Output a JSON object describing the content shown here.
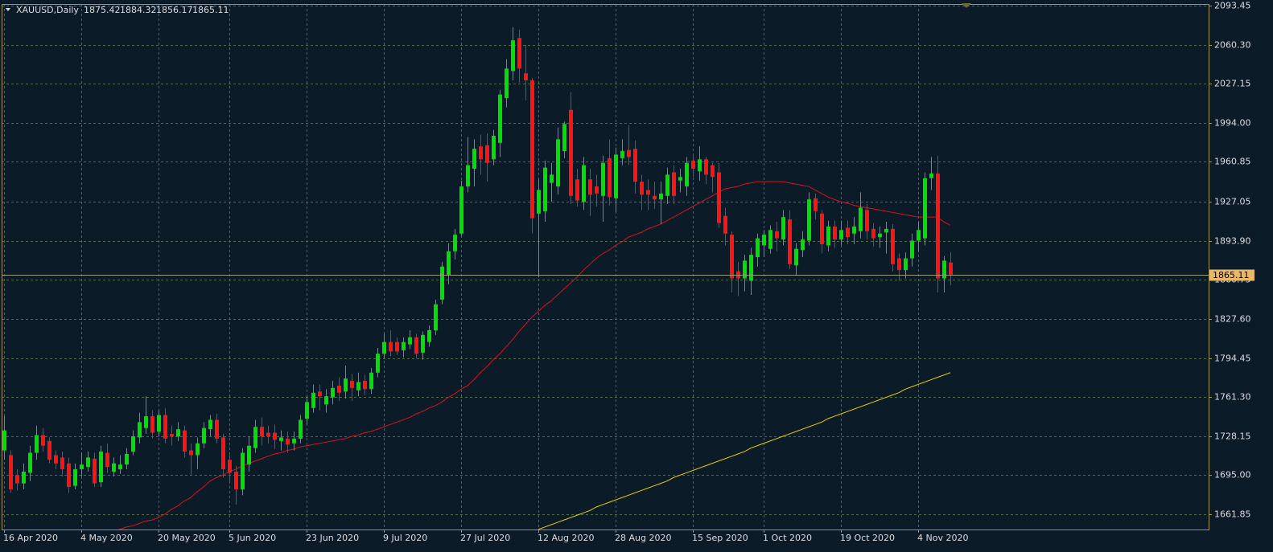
{
  "chart_data": {
    "type": "candlestick",
    "title": "XAUUSD,Daily",
    "categories": [
      "16 Apr 2020",
      null,
      null,
      null,
      null,
      null,
      null,
      null,
      null,
      null,
      null,
      null,
      "4 May 2020",
      null,
      null,
      null,
      null,
      null,
      null,
      null,
      null,
      null,
      null,
      null,
      "20 May 2020",
      null,
      null,
      null,
      null,
      null,
      null,
      null,
      null,
      null,
      null,
      "5 Jun 2020",
      null,
      null,
      null,
      null,
      null,
      null,
      null,
      null,
      null,
      null,
      null,
      "23 Jun 2020",
      null,
      null,
      null,
      null,
      null,
      null,
      null,
      null,
      null,
      null,
      null,
      "9 Jul 2020",
      null,
      null,
      null,
      null,
      null,
      null,
      null,
      null,
      null,
      null,
      null,
      "27 Jul 2020",
      null,
      null,
      null,
      null,
      null,
      null,
      null,
      null,
      null,
      null,
      null,
      "12 Aug 2020",
      null,
      null,
      null,
      null,
      null,
      null,
      null,
      null,
      null,
      null,
      null,
      "28 Aug 2020",
      null,
      null,
      null,
      null,
      null,
      null,
      null,
      null,
      null,
      null,
      null,
      "15 Sep 2020",
      null,
      null,
      null,
      null,
      null,
      null,
      null,
      null,
      null,
      null,
      "1 Oct 2020",
      null,
      null,
      null,
      null,
      null,
      null,
      null,
      null,
      null,
      null,
      null,
      "19 Oct 2020",
      null,
      null,
      null,
      null,
      null,
      null,
      null,
      null,
      null,
      null,
      null,
      "4 Nov 2020",
      null,
      null,
      null,
      null,
      null
    ],
    "open": [
      1716,
      1712,
      1695,
      1688,
      1697,
      1714,
      1729,
      1724,
      1712,
      1710,
      1705,
      1686,
      1700,
      1702,
      1709,
      1689,
      1714,
      1698,
      1700,
      1704,
      1715,
      1727,
      1735,
      1745,
      1732,
      1746,
      1730,
      1728,
      1733,
      1716,
      1712,
      1722,
      1734,
      1742,
      1727,
      1708,
      1698,
      1683,
      1704,
      1718,
      1736,
      1731,
      1731,
      1724,
      1726,
      1722,
      1726,
      1743,
      1752,
      1766,
      1755,
      1761,
      1771,
      1766,
      1775,
      1767,
      1775,
      1768,
      1782,
      1798,
      1808,
      1808,
      1801,
      1806,
      1812,
      1799,
      1808,
      1818,
      1844,
      1865,
      1885,
      1900,
      1940,
      1955,
      1974,
      1975,
      1963,
      1977,
      2015,
      2038,
      2066,
      2036,
      2030,
      1917,
      1919,
      1943,
      1940,
      1970,
      2005,
      1946,
      1927,
      1946,
      1940,
      1932,
      1964,
      1930,
      1964,
      1971,
      1972,
      1944,
      1937,
      1932,
      1929,
      1932,
      1952,
      1945,
      1940,
      1962,
      1953,
      1963,
      1958,
      1952,
      1915,
      1899,
      1868,
      1862,
      1860,
      1880,
      1890,
      1887,
      1902,
      1895,
      1912,
      1873,
      1886,
      1894,
      1930,
      1917,
      1890,
      1906,
      1895,
      1905,
      1900,
      1902,
      1920,
      1904,
      1897,
      1901,
      1904,
      1879,
      1869,
      1879,
      1894,
      1896,
      1947,
      1951,
      1862,
      1875.42
    ],
    "high": [
      1745,
      1716,
      1700,
      1705,
      1720,
      1737,
      1735,
      1727,
      1716,
      1715,
      1710,
      1705,
      1714,
      1715,
      1714,
      1720,
      1722,
      1710,
      1712,
      1718,
      1733,
      1748,
      1762,
      1750,
      1750,
      1752,
      1737,
      1740,
      1737,
      1722,
      1727,
      1740,
      1746,
      1747,
      1730,
      1712,
      1703,
      1718,
      1728,
      1742,
      1744,
      1737,
      1738,
      1733,
      1732,
      1732,
      1746,
      1762,
      1772,
      1772,
      1768,
      1775,
      1778,
      1788,
      1781,
      1782,
      1780,
      1786,
      1803,
      1815,
      1818,
      1812,
      1812,
      1818,
      1815,
      1817,
      1822,
      1844,
      1876,
      1892,
      1904,
      1945,
      1982,
      1980,
      1984,
      1985,
      1988,
      2022,
      2048,
      2075,
      2073,
      2060,
      2032,
      1946,
      1962,
      1960,
      1990,
      1995,
      2020,
      1955,
      1965,
      1955,
      1950,
      1966,
      1980,
      1973,
      1980,
      1992,
      1979,
      1950,
      1946,
      1944,
      1944,
      1956,
      1958,
      1955,
      1965,
      1968,
      1974,
      1965,
      1960,
      1960,
      1922,
      1902,
      1876,
      1882,
      1888,
      1900,
      1903,
      1907,
      1910,
      1920,
      1920,
      1892,
      1902,
      1935,
      1934,
      1920,
      1911,
      1911,
      1911,
      1911,
      1914,
      1935,
      1925,
      1909,
      1906,
      1910,
      1908,
      1883,
      1884,
      1900,
      1910,
      1952,
      1965,
      1966,
      1881,
      1884.32
    ],
    "low": [
      1708,
      1680,
      1682,
      1683,
      1690,
      1708,
      1715,
      1705,
      1700,
      1694,
      1680,
      1683,
      1694,
      1698,
      1685,
      1685,
      1697,
      1694,
      1696,
      1700,
      1712,
      1722,
      1730,
      1726,
      1728,
      1722,
      1720,
      1724,
      1710,
      1695,
      1700,
      1718,
      1728,
      1722,
      1693,
      1688,
      1670,
      1678,
      1698,
      1714,
      1720,
      1722,
      1717,
      1716,
      1714,
      1716,
      1722,
      1738,
      1748,
      1750,
      1748,
      1755,
      1758,
      1760,
      1758,
      1762,
      1763,
      1764,
      1778,
      1794,
      1796,
      1797,
      1795,
      1802,
      1794,
      1793,
      1804,
      1814,
      1840,
      1857,
      1878,
      1898,
      1935,
      1940,
      1950,
      1944,
      1958,
      1965,
      2007,
      2030,
      2028,
      2013,
      1900,
      1863,
      1910,
      1927,
      1933,
      1964,
      1925,
      1923,
      1920,
      1915,
      1923,
      1910,
      1924,
      1918,
      1958,
      1958,
      1934,
      1920,
      1920,
      1921,
      1908,
      1925,
      1925,
      1935,
      1932,
      1948,
      1945,
      1942,
      1935,
      1905,
      1890,
      1850,
      1847,
      1851,
      1848,
      1872,
      1880,
      1883,
      1885,
      1890,
      1870,
      1865,
      1880,
      1890,
      1912,
      1883,
      1885,
      1888,
      1890,
      1891,
      1891,
      1896,
      1895,
      1889,
      1888,
      1883,
      1868,
      1860,
      1862,
      1872,
      1885,
      1890,
      1937,
      1850,
      1850,
      1856.17
    ],
    "close": [
      1733,
      1683,
      1688,
      1698,
      1714,
      1729,
      1720,
      1708,
      1705,
      1700,
      1685,
      1700,
      1704,
      1710,
      1688,
      1715,
      1702,
      1705,
      1704,
      1713,
      1728,
      1740,
      1745,
      1731,
      1746,
      1726,
      1728,
      1734,
      1715,
      1712,
      1722,
      1735,
      1742,
      1726,
      1700,
      1697,
      1683,
      1714,
      1720,
      1736,
      1728,
      1728,
      1725,
      1727,
      1721,
      1726,
      1742,
      1757,
      1765,
      1762,
      1762,
      1769,
      1765,
      1777,
      1769,
      1774,
      1768,
      1782,
      1798,
      1808,
      1800,
      1800,
      1808,
      1812,
      1798,
      1814,
      1818,
      1840,
      1872,
      1885,
      1899,
      1940,
      1958,
      1972,
      1963,
      1960,
      1983,
      2018,
      2040,
      2064,
      2040,
      2030,
      1913,
      1937,
      1956,
      1950,
      1980,
      1993,
      1932,
      1928,
      1958,
      1933,
      1934,
      1960,
      1931,
      1967,
      1970,
      1965,
      1944,
      1933,
      1933,
      1929,
      1934,
      1950,
      1932,
      1948,
      1960,
      1955,
      1963,
      1950,
      1948,
      1909,
      1900,
      1862,
      1862,
      1877,
      1882,
      1896,
      1899,
      1903,
      1896,
      1914,
      1874,
      1887,
      1895,
      1929,
      1919,
      1891,
      1906,
      1895,
      1903,
      1897,
      1906,
      1922,
      1902,
      1896,
      1900,
      1904,
      1874,
      1869,
      1879,
      1894,
      1903,
      1947,
      1951,
      1862,
      1877,
      1865.11
    ],
    "up_color": "#00e000",
    "down_color": "#ff1414",
    "lines": [
      {
        "color": "#d8141c",
        "values": [
          null,
          null,
          null,
          null,
          null,
          null,
          null,
          null,
          null,
          null,
          null,
          null,
          null,
          null,
          null,
          null,
          null,
          1647,
          1649,
          1651,
          1652,
          1654,
          1656,
          1657,
          1659,
          1662,
          1666,
          1669,
          1673,
          1676,
          1681,
          1685,
          1690,
          1693,
          1695,
          1698,
          1700,
          1703,
          1705,
          1707,
          1709,
          1711,
          1713,
          1714,
          1716,
          1717,
          1719,
          1720,
          1721,
          1722,
          1723,
          1724,
          1725,
          1726,
          1728,
          1729,
          1731,
          1732,
          1734,
          1736,
          1738,
          1740,
          1742,
          1744,
          1747,
          1749,
          1752,
          1754,
          1757,
          1761,
          1764,
          1768,
          1771,
          1776,
          1782,
          1787,
          1793,
          1798,
          1804,
          1810,
          1817,
          1823,
          1829,
          1834,
          1839,
          1843,
          1848,
          1853,
          1858,
          1863,
          1869,
          1874,
          1879,
          1883,
          1886,
          1890,
          1893,
          1897,
          1899,
          1901,
          1904,
          1906,
          1908,
          1911,
          1914,
          1917,
          1920,
          1923,
          1926,
          1929,
          1932,
          1935,
          1938,
          1939,
          1940,
          1942,
          1943,
          1944,
          1944,
          1944,
          1944,
          1944,
          1943,
          1942,
          1941,
          1940,
          1937,
          1934,
          1931,
          1929,
          1927,
          1926,
          1924,
          1923,
          1922,
          1921,
          1920,
          1919,
          1918,
          1917,
          1916,
          1915,
          1914,
          1914,
          1914,
          1914,
          1910,
          1907
        ]
      },
      {
        "color": "#e6cc00",
        "values": [
          null,
          null,
          null,
          null,
          null,
          null,
          null,
          null,
          null,
          null,
          null,
          null,
          null,
          null,
          null,
          null,
          null,
          null,
          null,
          null,
          null,
          null,
          null,
          null,
          null,
          null,
          null,
          null,
          null,
          null,
          null,
          null,
          null,
          null,
          null,
          null,
          null,
          null,
          null,
          null,
          null,
          null,
          null,
          null,
          null,
          null,
          null,
          null,
          null,
          null,
          null,
          null,
          null,
          null,
          null,
          null,
          null,
          null,
          null,
          null,
          null,
          null,
          null,
          null,
          null,
          null,
          null,
          null,
          null,
          null,
          null,
          null,
          null,
          null,
          null,
          null,
          null,
          null,
          null,
          null,
          null,
          null,
          null,
          1649,
          1651,
          1653,
          1655,
          1657,
          1659,
          1661,
          1663,
          1665,
          1668,
          1670,
          1672,
          1674,
          1676,
          1678,
          1680,
          1682,
          1684,
          1686,
          1688,
          1690,
          1693,
          1695,
          1697,
          1699,
          1701,
          1703,
          1705,
          1707,
          1709,
          1711,
          1713,
          1715,
          1718,
          1720,
          1722,
          1724,
          1726,
          1728,
          1730,
          1732,
          1734,
          1736,
          1738,
          1740,
          1743,
          1745,
          1747,
          1749,
          1751,
          1753,
          1755,
          1757,
          1759,
          1761,
          1763,
          1765,
          1768,
          1770,
          1772,
          1774,
          1776,
          1778,
          1780,
          1782
        ]
      }
    ],
    "ylim": [
      1648.9,
      2094.8
    ],
    "yticks": [
      2093.45,
      {
        "value": 2060.3,
        "label": "2060.30"
      },
      2027.15,
      {
        "value": 1994,
        "label": "1994.00"
      },
      1960.85,
      1927.05,
      {
        "value": 1893.9,
        "label": "1893.90"
      },
      1860.75,
      {
        "value": 1827.6,
        "label": "1827.60"
      },
      1794.45,
      {
        "value": 1761.3,
        "label": "1761.30"
      },
      1728.15,
      {
        "value": 1695,
        "label": "1695.00"
      },
      1661.85
    ],
    "grid": true
  }
}
